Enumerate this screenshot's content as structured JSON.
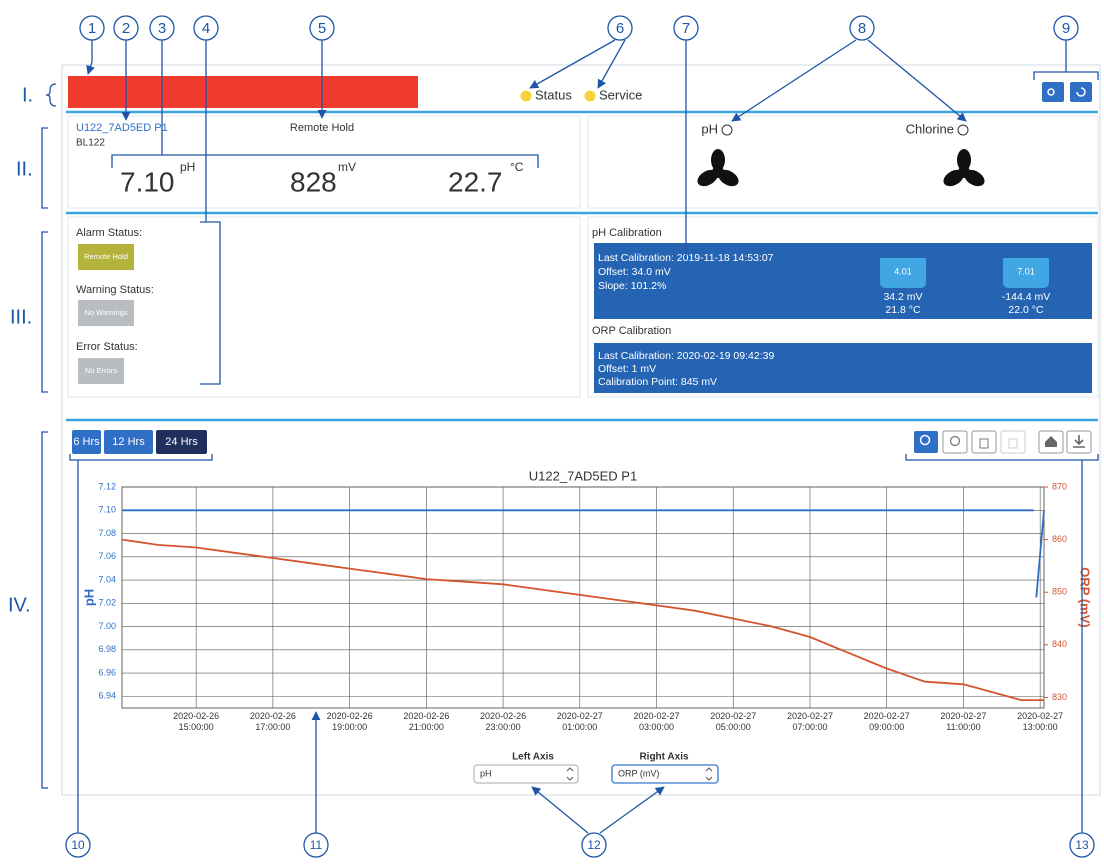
{
  "callouts": {
    "top": [
      "1",
      "2",
      "3",
      "4",
      "5",
      "6",
      "7",
      "8",
      "9"
    ],
    "bottom": [
      "10",
      "11",
      "12",
      "13"
    ]
  },
  "sections": [
    "I.",
    "II.",
    "III.",
    "IV."
  ],
  "header": {
    "indicators": [
      "Status",
      "Service"
    ]
  },
  "device": {
    "name": "U122_7AD5ED P1",
    "id": "BL122",
    "mode": "Remote Hold",
    "readings": [
      {
        "value": "7.10",
        "unit": "pH"
      },
      {
        "value": "828",
        "unit": "mV"
      },
      {
        "value": "22.7",
        "unit": "°C"
      }
    ]
  },
  "sensors": [
    "pH",
    "Chlorine"
  ],
  "status": {
    "alarm": {
      "label": "Alarm Status:",
      "button": "Remote Hold"
    },
    "warning": {
      "label": "Warning Status:",
      "button": "No Warnings"
    },
    "error": {
      "label": "Error Status:",
      "button": "No Errors"
    }
  },
  "ph_calibration": {
    "title": "pH Calibration",
    "lines": [
      "Last Calibration: 2019-11-18 14:53:07",
      "Offset: 34.0 mV",
      "Slope: 101.2%"
    ],
    "points": [
      {
        "buffer": "4.01",
        "mv": "34.2 mV",
        "temp": "21.8 °C"
      },
      {
        "buffer": "7.01",
        "mv": "-144.4 mV",
        "temp": "22.0 °C"
      }
    ]
  },
  "orp_calibration": {
    "title": "ORP Calibration",
    "lines": [
      "Last Calibration: 2020-02-19 09:42:39",
      "Offset: 1 mV",
      "Calibration Point: 845 mV"
    ]
  },
  "range_buttons": [
    "6 Hrs",
    "12 Hrs",
    "24 Hrs"
  ],
  "chart": {
    "type": "line",
    "title": "U122_7AD5ED P1",
    "ylabel": "pH",
    "y2label": "ORP (mV)",
    "grid": true,
    "xlim": [
      "2020-02-26 13:04:00",
      "2020-02-27 13:06:00"
    ],
    "xticks": [
      "2020-02-26 15:00:00",
      "2020-02-26 17:00:00",
      "2020-02-26 19:00:00",
      "2020-02-26 21:00:00",
      "2020-02-26 23:00:00",
      "2020-02-27 01:00:00",
      "2020-02-27 03:00:00",
      "2020-02-27 05:00:00",
      "2020-02-27 07:00:00",
      "2020-02-27 09:00:00",
      "2020-02-27 11:00:00",
      "2020-02-27 13:00:00"
    ],
    "ylim": [
      6.93,
      7.12
    ],
    "yticks": [
      6.94,
      6.96,
      6.98,
      {
        "value": 7,
        "label": "7.00"
      },
      7.02,
      7.04,
      7.06,
      7.08,
      {
        "value": 7.1,
        "label": "7.10"
      },
      7.12
    ],
    "y2lim": [
      828,
      870
    ],
    "y2ticks": [
      830,
      840,
      850,
      860,
      870
    ],
    "series": [
      {
        "name": "pH",
        "color": "#2f6fc6",
        "axis": "y",
        "x": [
          "2020-02-26 13:04:00",
          "2020-02-27 12:50:00",
          "2020-02-27 12:52:00",
          "2020-02-27 12:54:00",
          "2020-02-27 13:06:00"
        ],
        "values": [
          7.1,
          7.1,
          null,
          7.025,
          7.1
        ]
      },
      {
        "name": "ORP (mV)",
        "color": "#d4542e",
        "axis": "y2",
        "x": [
          "2020-02-26 13:04:00",
          "2020-02-26 14:00:00",
          "2020-02-26 15:00:00",
          "2020-02-26 16:00:00",
          "2020-02-26 17:00:00",
          "2020-02-26 18:00:00",
          "2020-02-26 19:00:00",
          "2020-02-26 20:00:00",
          "2020-02-26 21:00:00",
          "2020-02-26 22:00:00",
          "2020-02-26 23:00:00",
          "2020-02-27 00:00:00",
          "2020-02-27 01:00:00",
          "2020-02-27 02:00:00",
          "2020-02-27 03:00:00",
          "2020-02-27 04:00:00",
          "2020-02-27 05:00:00",
          "2020-02-27 06:00:00",
          "2020-02-27 07:00:00",
          "2020-02-27 08:00:00",
          "2020-02-27 09:00:00",
          "2020-02-27 10:00:00",
          "2020-02-27 11:00:00",
          "2020-02-27 12:00:00",
          "2020-02-27 12:30:00",
          "2020-02-27 13:06:00"
        ],
        "values": [
          860,
          859,
          858.5,
          857.5,
          856.5,
          855.5,
          854.5,
          853.5,
          852.5,
          852,
          851.5,
          850.5,
          849.5,
          848.5,
          847.5,
          846.5,
          845,
          843.5,
          841.5,
          838.5,
          835.5,
          833,
          832.5,
          830.5,
          829.5,
          829.5
        ]
      }
    ]
  },
  "axis_select": {
    "left": {
      "label": "Left Axis",
      "value": "pH"
    },
    "right": {
      "label": "Right Axis",
      "value": "ORP (mV)"
    }
  }
}
